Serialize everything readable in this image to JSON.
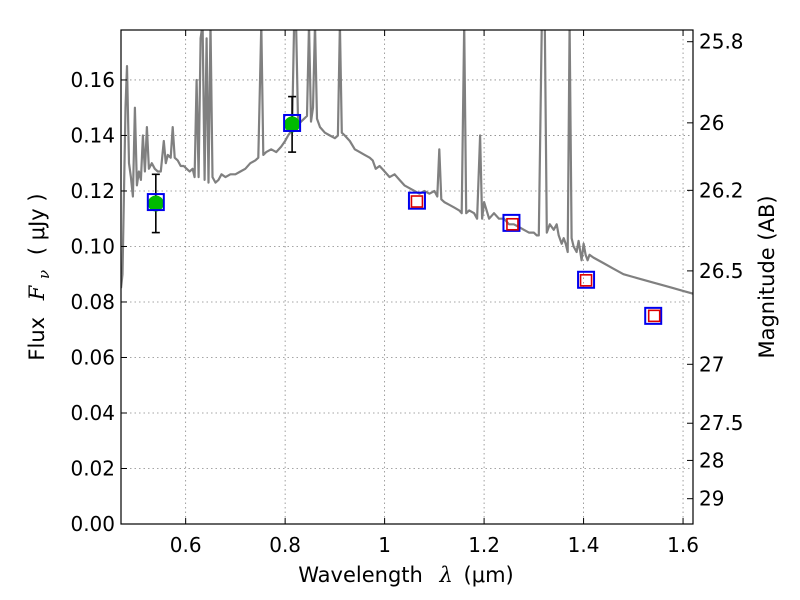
{
  "chart_data": {
    "type": "line",
    "xlabel": "Wavelength",
    "xlabel_symbol": "λ",
    "xlabel_unit": "(μm)",
    "ylabel": "Flux",
    "ylabel_symbol": "F",
    "ylabel_subscript": "ν",
    "ylabel_unit": "( μJy )",
    "y2label": "Magnitude (AB)",
    "xlim": [
      0.47,
      1.62
    ],
    "ylim": [
      0.0,
      0.178
    ],
    "grid": true,
    "x_ticks": [
      {
        "v": 0.6,
        "label": "0.6"
      },
      {
        "v": 0.8,
        "label": "0.8"
      },
      {
        "v": 1.0,
        "label": "1"
      },
      {
        "v": 1.2,
        "label": "1.2"
      },
      {
        "v": 1.4,
        "label": "1.4"
      },
      {
        "v": 1.6,
        "label": "1.6"
      }
    ],
    "y_ticks": [
      {
        "v": 0.0,
        "label": "0.00"
      },
      {
        "v": 0.02,
        "label": "0.02"
      },
      {
        "v": 0.04,
        "label": "0.04"
      },
      {
        "v": 0.06,
        "label": "0.06"
      },
      {
        "v": 0.08,
        "label": "0.08"
      },
      {
        "v": 0.1,
        "label": "0.10"
      },
      {
        "v": 0.12,
        "label": "0.12"
      },
      {
        "v": 0.14,
        "label": "0.14"
      },
      {
        "v": 0.16,
        "label": "0.16"
      }
    ],
    "y2_ticks": [
      {
        "mag": 25.8,
        "label": "25.8"
      },
      {
        "mag": 26,
        "label": "26"
      },
      {
        "mag": 26.2,
        "label": "26.2"
      },
      {
        "mag": 26.5,
        "label": "26.5"
      },
      {
        "mag": 27,
        "label": "27"
      },
      {
        "mag": 27.5,
        "label": "27.5"
      },
      {
        "mag": 28,
        "label": "28"
      },
      {
        "mag": 29,
        "label": "29"
      }
    ],
    "colors": {
      "model": "#808080",
      "observed": "#00bb00",
      "model_box": "#0000ee",
      "predicted_box": "#dd0000",
      "errorbar": "#000000",
      "grid": "#888888"
    },
    "series": [
      {
        "name": "model-spectrum",
        "kind": "line",
        "points": [
          [
            0.47,
            0.085
          ],
          [
            0.473,
            0.09
          ],
          [
            0.476,
            0.12
          ],
          [
            0.479,
            0.15
          ],
          [
            0.482,
            0.165
          ],
          [
            0.486,
            0.13
          ],
          [
            0.49,
            0.125
          ],
          [
            0.494,
            0.118
          ],
          [
            0.498,
            0.15
          ],
          [
            0.502,
            0.122
          ],
          [
            0.506,
            0.127
          ],
          [
            0.51,
            0.124
          ],
          [
            0.514,
            0.14
          ],
          [
            0.518,
            0.127
          ],
          [
            0.522,
            0.143
          ],
          [
            0.526,
            0.128
          ],
          [
            0.532,
            0.13
          ],
          [
            0.538,
            0.128
          ],
          [
            0.544,
            0.127
          ],
          [
            0.55,
            0.127
          ],
          [
            0.556,
            0.138
          ],
          [
            0.56,
            0.13
          ],
          [
            0.564,
            0.133
          ],
          [
            0.57,
            0.132
          ],
          [
            0.574,
            0.143
          ],
          [
            0.578,
            0.132
          ],
          [
            0.584,
            0.131
          ],
          [
            0.59,
            0.129
          ],
          [
            0.596,
            0.129
          ],
          [
            0.602,
            0.128
          ],
          [
            0.608,
            0.127
          ],
          [
            0.614,
            0.128
          ],
          [
            0.618,
            0.125
          ],
          [
            0.622,
            0.16
          ],
          [
            0.626,
            0.125
          ],
          [
            0.63,
            0.175
          ],
          [
            0.634,
            0.18
          ],
          [
            0.638,
            0.124
          ],
          [
            0.642,
            0.175
          ],
          [
            0.646,
            0.123
          ],
          [
            0.65,
            0.18
          ],
          [
            0.654,
            0.125
          ],
          [
            0.66,
            0.123
          ],
          [
            0.666,
            0.124
          ],
          [
            0.672,
            0.126
          ],
          [
            0.68,
            0.125
          ],
          [
            0.69,
            0.126
          ],
          [
            0.7,
            0.126
          ],
          [
            0.71,
            0.127
          ],
          [
            0.72,
            0.128
          ],
          [
            0.73,
            0.13
          ],
          [
            0.74,
            0.131
          ],
          [
            0.746,
            0.132
          ],
          [
            0.752,
            0.18
          ],
          [
            0.756,
            0.133
          ],
          [
            0.762,
            0.134
          ],
          [
            0.772,
            0.135
          ],
          [
            0.782,
            0.134
          ],
          [
            0.792,
            0.136
          ],
          [
            0.8,
            0.138
          ],
          [
            0.806,
            0.14
          ],
          [
            0.81,
            0.141
          ],
          [
            0.814,
            0.142
          ],
          [
            0.818,
            0.18
          ],
          [
            0.822,
            0.18
          ],
          [
            0.826,
            0.144
          ],
          [
            0.832,
            0.145
          ],
          [
            0.838,
            0.146
          ],
          [
            0.844,
            0.147
          ],
          [
            0.848,
            0.18
          ],
          [
            0.852,
            0.145
          ],
          [
            0.856,
            0.15
          ],
          [
            0.86,
            0.18
          ],
          [
            0.864,
            0.146
          ],
          [
            0.87,
            0.143
          ],
          [
            0.88,
            0.141
          ],
          [
            0.89,
            0.14
          ],
          [
            0.9,
            0.139
          ],
          [
            0.906,
            0.14
          ],
          [
            0.91,
            0.18
          ],
          [
            0.914,
            0.141
          ],
          [
            0.92,
            0.14
          ],
          [
            0.93,
            0.138
          ],
          [
            0.94,
            0.135
          ],
          [
            0.95,
            0.134
          ],
          [
            0.96,
            0.133
          ],
          [
            0.97,
            0.132
          ],
          [
            0.976,
            0.131
          ],
          [
            0.982,
            0.128
          ],
          [
            0.99,
            0.129
          ],
          [
            1.0,
            0.127
          ],
          [
            1.01,
            0.125
          ],
          [
            1.02,
            0.126
          ],
          [
            1.03,
            0.124
          ],
          [
            1.04,
            0.122
          ],
          [
            1.05,
            0.121
          ],
          [
            1.06,
            0.12
          ],
          [
            1.07,
            0.119
          ],
          [
            1.08,
            0.12
          ],
          [
            1.09,
            0.119
          ],
          [
            1.1,
            0.12
          ],
          [
            1.106,
            0.118
          ],
          [
            1.11,
            0.135
          ],
          [
            1.114,
            0.117
          ],
          [
            1.12,
            0.116
          ],
          [
            1.13,
            0.115
          ],
          [
            1.14,
            0.114
          ],
          [
            1.15,
            0.113
          ],
          [
            1.155,
            0.112
          ],
          [
            1.16,
            0.18
          ],
          [
            1.164,
            0.112
          ],
          [
            1.17,
            0.113
          ],
          [
            1.18,
            0.112
          ],
          [
            1.186,
            0.11
          ],
          [
            1.192,
            0.14
          ],
          [
            1.196,
            0.11
          ],
          [
            1.2,
            0.116
          ],
          [
            1.21,
            0.11
          ],
          [
            1.22,
            0.112
          ],
          [
            1.23,
            0.11
          ],
          [
            1.24,
            0.11
          ],
          [
            1.25,
            0.108
          ],
          [
            1.26,
            0.108
          ],
          [
            1.27,
            0.107
          ],
          [
            1.28,
            0.106
          ],
          [
            1.29,
            0.105
          ],
          [
            1.3,
            0.105
          ],
          [
            1.306,
            0.104
          ],
          [
            1.31,
            0.104
          ],
          [
            1.316,
            0.18
          ],
          [
            1.322,
            0.18
          ],
          [
            1.326,
            0.105
          ],
          [
            1.332,
            0.108
          ],
          [
            1.34,
            0.106
          ],
          [
            1.346,
            0.108
          ],
          [
            1.35,
            0.104
          ],
          [
            1.356,
            0.101
          ],
          [
            1.36,
            0.103
          ],
          [
            1.364,
            0.101
          ],
          [
            1.368,
            0.098
          ],
          [
            1.372,
            0.18
          ],
          [
            1.376,
            0.103
          ],
          [
            1.38,
            0.1
          ],
          [
            1.386,
            0.098
          ],
          [
            1.39,
            0.102
          ],
          [
            1.396,
            0.095
          ],
          [
            1.4,
            0.101
          ],
          [
            1.404,
            0.097
          ],
          [
            1.408,
            0.095
          ],
          [
            1.412,
            0.097
          ],
          [
            1.42,
            0.096
          ],
          [
            1.44,
            0.094
          ],
          [
            1.46,
            0.092
          ],
          [
            1.48,
            0.09
          ],
          [
            1.5,
            0.089
          ],
          [
            1.52,
            0.088
          ],
          [
            1.54,
            0.087
          ],
          [
            1.56,
            0.086
          ],
          [
            1.58,
            0.085
          ],
          [
            1.6,
            0.084
          ],
          [
            1.62,
            0.083
          ]
        ]
      },
      {
        "name": "observed-photometry",
        "kind": "circle",
        "points": [
          {
            "x": 0.54,
            "y": 0.1155,
            "yerr": 0.0105
          },
          {
            "x": 0.814,
            "y": 0.144,
            "yerr": 0.01
          }
        ]
      },
      {
        "name": "model-photometry",
        "kind": "square",
        "points": [
          {
            "x": 0.54,
            "y": 0.116
          },
          {
            "x": 0.814,
            "y": 0.1445
          },
          {
            "x": 1.065,
            "y": 0.1165
          },
          {
            "x": 1.255,
            "y": 0.1085
          },
          {
            "x": 1.405,
            "y": 0.088
          },
          {
            "x": 1.54,
            "y": 0.075
          }
        ]
      },
      {
        "name": "predicted-photometry",
        "kind": "square-small",
        "points": [
          {
            "x": 1.065,
            "y": 0.1162
          },
          {
            "x": 1.257,
            "y": 0.108
          },
          {
            "x": 1.405,
            "y": 0.0878
          },
          {
            "x": 1.542,
            "y": 0.075
          }
        ]
      }
    ]
  }
}
